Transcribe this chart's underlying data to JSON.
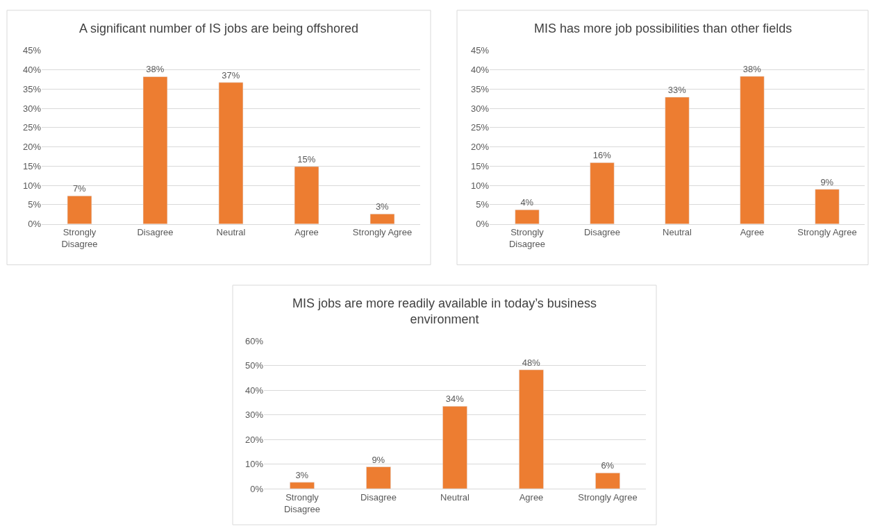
{
  "chart_data": [
    {
      "type": "bar",
      "title": "A significant number of IS jobs are being offshored",
      "categories": [
        "Strongly Disagree",
        "Disagree",
        "Neutral",
        "Agree",
        "Strongly Agree"
      ],
      "values": [
        7.3,
        38.2,
        36.7,
        14.9,
        2.6
      ],
      "value_labels": [
        "7%",
        "38%",
        "37%",
        "15%",
        "3%"
      ],
      "color": "#ed7d31",
      "ylim": [
        0,
        45
      ],
      "yticks": [
        {
          "value": 0,
          "label": "0%"
        },
        {
          "value": 5,
          "label": "5%"
        },
        {
          "value": 10,
          "label": "10%"
        },
        {
          "value": 15,
          "label": "15%"
        },
        {
          "value": 20,
          "label": "20%"
        },
        {
          "value": 25,
          "label": "25%"
        },
        {
          "value": 30,
          "label": "30%"
        },
        {
          "value": 35,
          "label": "35%"
        },
        {
          "value": 40,
          "label": "40%"
        },
        {
          "value": 45,
          "label": "45%"
        }
      ],
      "grid": "y"
    },
    {
      "type": "bar",
      "title": "MIS has more job possibilities than other fields",
      "categories": [
        "Strongly Disagree",
        "Disagree",
        "Neutral",
        "Agree",
        "Strongly Agree"
      ],
      "values": [
        3.7,
        15.9,
        32.9,
        38.3,
        9.0
      ],
      "value_labels": [
        "4%",
        "16%",
        "33%",
        "38%",
        "9%"
      ],
      "color": "#ed7d31",
      "ylim": [
        0,
        45
      ],
      "yticks": [
        {
          "value": 0,
          "label": "0%"
        },
        {
          "value": 5,
          "label": "5%"
        },
        {
          "value": 10,
          "label": "10%"
        },
        {
          "value": 15,
          "label": "15%"
        },
        {
          "value": 20,
          "label": "20%"
        },
        {
          "value": 25,
          "label": "25%"
        },
        {
          "value": 30,
          "label": "30%"
        },
        {
          "value": 35,
          "label": "35%"
        },
        {
          "value": 40,
          "label": "40%"
        },
        {
          "value": 45,
          "label": "45%"
        }
      ],
      "grid": "y"
    },
    {
      "type": "bar",
      "title": "MIS jobs are more readily available in today’s business environment",
      "categories": [
        "Strongly Disagree",
        "Disagree",
        "Neutral",
        "Agree",
        "Strongly Agree"
      ],
      "values": [
        2.6,
        8.9,
        33.5,
        48.3,
        6.4
      ],
      "value_labels": [
        "3%",
        "9%",
        "34%",
        "48%",
        "6%"
      ],
      "color": "#ed7d31",
      "ylim": [
        0,
        60
      ],
      "yticks": [
        {
          "value": 0,
          "label": "0%"
        },
        {
          "value": 10,
          "label": "10%"
        },
        {
          "value": 20,
          "label": "20%"
        },
        {
          "value": 30,
          "label": "30%"
        },
        {
          "value": 40,
          "label": "40%"
        },
        {
          "value": 50,
          "label": "50%"
        },
        {
          "value": 60,
          "label": "60%"
        }
      ],
      "grid": "y"
    }
  ]
}
